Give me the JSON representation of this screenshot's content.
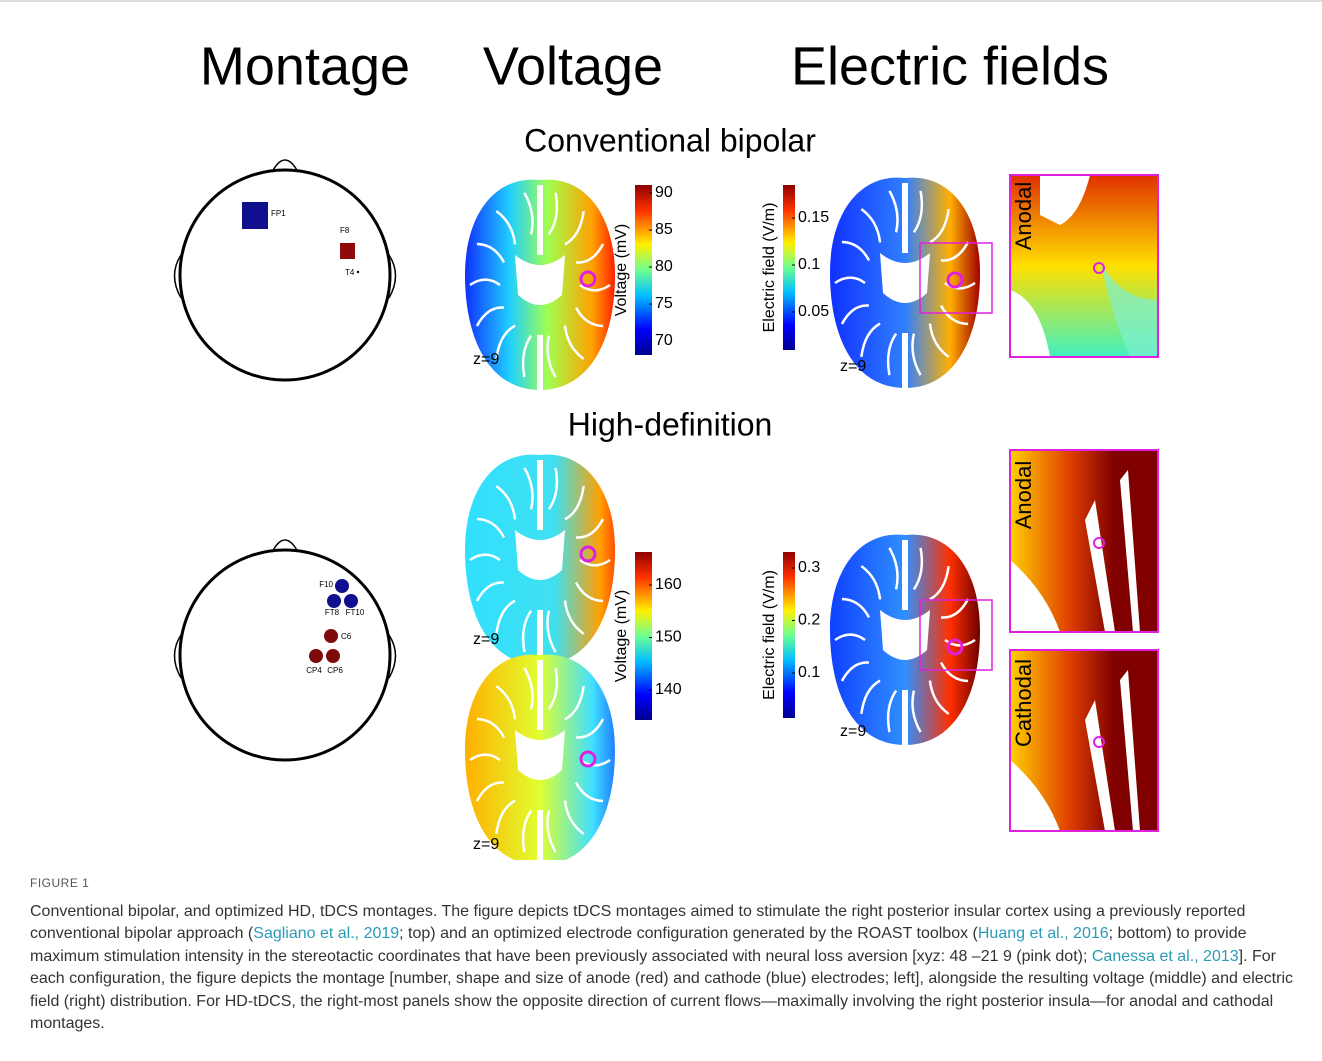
{
  "figure": {
    "column_headers": [
      "Montage",
      "Voltage",
      "Electric fields"
    ],
    "sections": [
      "Conventional bipolar",
      "High-definition"
    ],
    "electrodes_top": [
      "FP1",
      "F8",
      "T4"
    ],
    "electrodes_bottom": [
      "F10",
      "FT8",
      "FT10",
      "C6",
      "CP4",
      "CP6"
    ],
    "colorbars": [
      {
        "label": "Voltage (mV)",
        "ticks": [
          90,
          85,
          80,
          75,
          70
        ]
      },
      {
        "label": "Electric field (V/m)",
        "ticks": [
          0.15,
          0.1,
          0.05
        ]
      },
      {
        "label": "Voltage (mV)",
        "ticks": [
          160,
          150,
          140
        ]
      },
      {
        "label": "Electric field (V/m)",
        "ticks": [
          0.3,
          0.2,
          0.1
        ]
      }
    ],
    "slice_labels": [
      "z=9",
      "z=9",
      "z=9",
      "z=9",
      "z=9"
    ],
    "inset_labels": [
      "Anodal",
      "Anodal",
      "Cathodal"
    ]
  },
  "caption": {
    "label": "FIGURE 1",
    "segments": [
      {
        "text": "Conventional bipolar, and optimized HD, tDCS montages. The figure depicts tDCS montages aimed to stimulate the right posterior insular cortex using a previously reported conventional bipolar approach ("
      },
      {
        "link": "Sagliano et al., 2019"
      },
      {
        "text": "; top) and an optimized electrode configuration generated by the ROAST toolbox ("
      },
      {
        "link": "Huang et al., 2016"
      },
      {
        "text": "; bottom) to provide maximum stimulation intensity in the stereotactic coordinates that have been previously associated with neural loss aversion [xyz: 48 –21 9 (pink dot); "
      },
      {
        "link": "Canessa et al., 2013"
      },
      {
        "text": "]. For each configuration, the figure depicts the montage [number, shape and size of anode (red) and cathode (blue) electrodes; left], alongside the resulting voltage (middle) and electric field (right) distribution. For HD-tDCS, the right-most panels show the opposite direction of current flows—maximally involving the right posterior insula—for anodal and cathodal montages."
      }
    ]
  }
}
